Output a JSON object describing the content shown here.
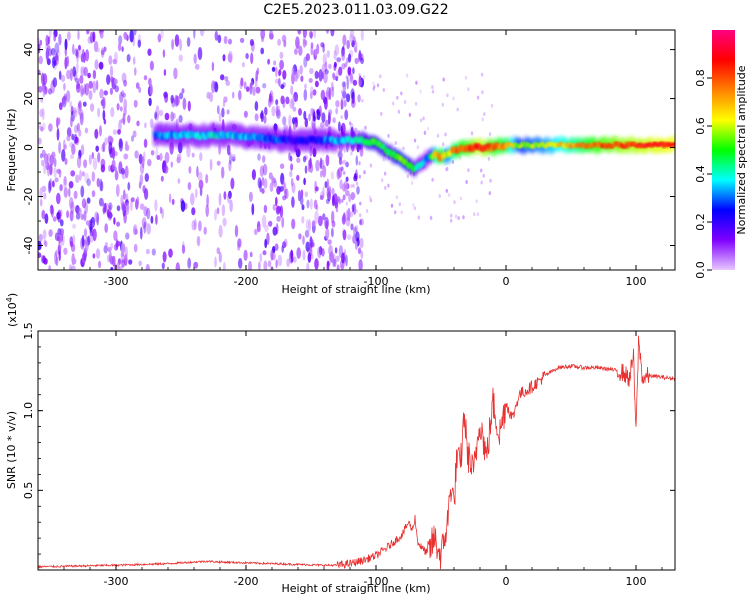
{
  "title": "C2E5.2023.011.03.09.G22",
  "chart_data": [
    {
      "type": "heatmap",
      "xlabel": "Height of straight line (km)",
      "ylabel": "Frequency (Hz)",
      "xlim": [
        -360,
        130
      ],
      "ylim": [
        -50,
        48
      ],
      "xticks": [
        -300,
        -200,
        -100,
        0,
        100
      ],
      "xtick_labels": [
        "-300",
        "-200",
        "-100",
        "0",
        "100"
      ],
      "yticks": [
        -40,
        -20,
        0,
        20,
        40
      ],
      "ytick_labels": [
        "-40",
        "-20",
        "0",
        "20",
        "40"
      ],
      "colorbar": {
        "label": "Normalized spectral amplitude",
        "range": [
          0,
          1
        ],
        "ticks": [
          0.0,
          0.2,
          0.4,
          0.6,
          0.8
        ],
        "tick_labels": [
          "0.0",
          "0.2",
          "0.4",
          "0.6",
          "0.8"
        ],
        "colors": [
          "#e8c8ff",
          "#7f00ff",
          "#0000ff",
          "#00ffff",
          "#00ff00",
          "#ffff00",
          "#ff8000",
          "#ff0000",
          "#ff0080"
        ]
      },
      "ridge": {
        "x": [
          -270,
          -250,
          -230,
          -210,
          -190,
          -170,
          -150,
          -130,
          -120,
          -110,
          -100,
          -90,
          -80,
          -70,
          -60,
          -55,
          -50,
          -45,
          -40,
          -30,
          -20,
          -10,
          0,
          10,
          30,
          50,
          70,
          90,
          110,
          130
        ],
        "y": [
          5,
          5,
          5,
          5,
          4,
          3,
          3,
          3,
          3,
          3,
          2,
          -2,
          -5,
          -9,
          -4,
          -3,
          -4,
          -3,
          -1,
          0,
          0,
          0,
          1,
          1,
          1,
          1,
          1,
          1,
          1,
          1
        ],
        "amplitude": [
          0.28,
          0.35,
          0.38,
          0.35,
          0.3,
          0.25,
          0.22,
          0.35,
          0.4,
          0.45,
          0.5,
          0.45,
          0.55,
          0.45,
          0.3,
          0.65,
          0.8,
          0.55,
          0.75,
          0.8,
          0.88,
          0.8,
          0.75,
          0.55,
          0.6,
          0.7,
          0.8,
          0.85,
          0.88,
          0.9
        ]
      },
      "background_noise": {
        "x_range": [
          -360,
          -130
        ],
        "level": 0.12
      }
    },
    {
      "type": "line",
      "xlabel": "Height of straight line (km)",
      "ylabel": "SNR (10 * v/v)",
      "y_multiplier_label": "(x10",
      "y_multiplier_exponent": "4",
      "y_multiplier_close": ")",
      "xlim": [
        -360,
        130
      ],
      "ylim": [
        0,
        1.5
      ],
      "xticks": [
        -300,
        -200,
        -100,
        0,
        100
      ],
      "xtick_labels": [
        "-300",
        "-200",
        "-100",
        "0",
        "100"
      ],
      "yticks": [
        0.5,
        1.0,
        1.5
      ],
      "ytick_labels": [
        "0.5",
        "1.0",
        "1.5"
      ],
      "color": "#e83030",
      "series": [
        {
          "x": [
            -360,
            -330,
            -300,
            -280,
            -260,
            -240,
            -230,
            -220,
            -200,
            -180,
            -160,
            -140,
            -130,
            -120,
            -110,
            -100,
            -90,
            -80,
            -75,
            -72,
            -70,
            -68,
            -65,
            -60,
            -55,
            -50,
            -45,
            -42,
            -40,
            -38,
            -35,
            -32,
            -30,
            -25,
            -20,
            -15,
            -10,
            -5,
            0,
            5,
            10,
            20,
            30,
            40,
            50,
            60,
            70,
            80,
            90,
            95,
            98,
            100,
            102,
            105,
            110,
            120,
            130
          ],
          "y": [
            0.02,
            0.025,
            0.03,
            0.035,
            0.04,
            0.05,
            0.055,
            0.05,
            0.045,
            0.04,
            0.035,
            0.03,
            0.03,
            0.04,
            0.06,
            0.09,
            0.15,
            0.22,
            0.3,
            0.25,
            0.33,
            0.18,
            0.14,
            0.1,
            0.2,
            0.08,
            0.3,
            0.55,
            0.4,
            0.7,
            0.65,
            1.0,
            0.75,
            0.6,
            0.95,
            0.7,
            1.05,
            0.85,
            1.05,
            0.95,
            1.1,
            1.15,
            1.22,
            1.27,
            1.28,
            1.27,
            1.27,
            1.26,
            1.24,
            1.2,
            1.35,
            0.85,
            1.45,
            1.2,
            1.22,
            1.21,
            1.2
          ]
        }
      ]
    }
  ]
}
